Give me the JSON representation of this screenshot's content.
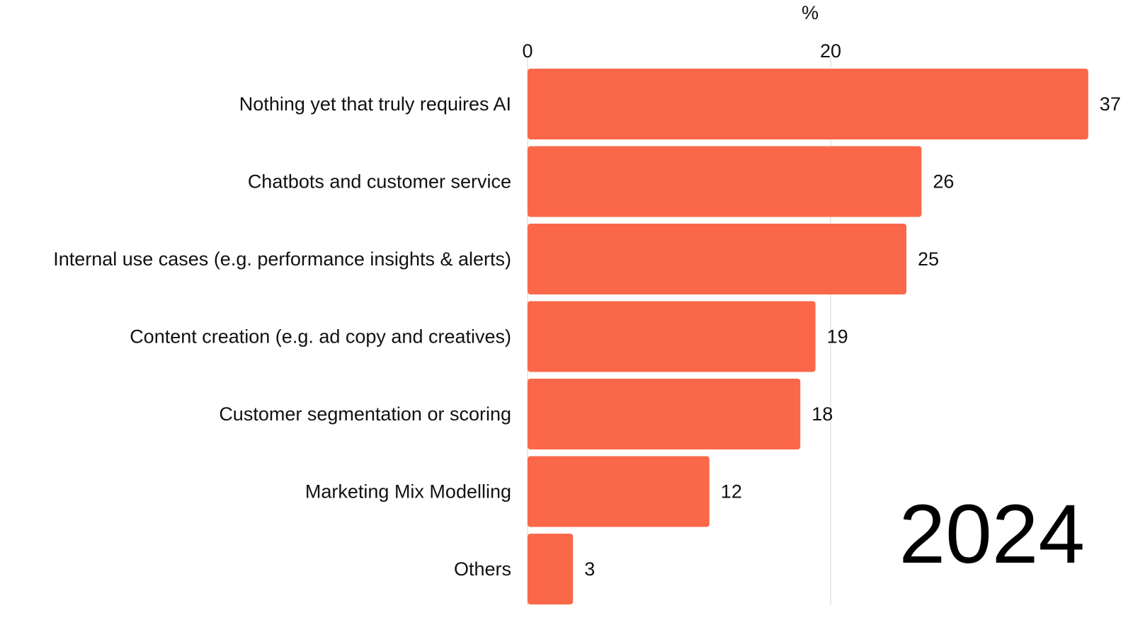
{
  "chart_data": {
    "type": "bar",
    "orientation": "horizontal",
    "unit_label": "%",
    "year": "2024",
    "categories": [
      "Nothing yet that truly requires AI",
      "Chatbots and customer service",
      "Internal use cases (e.g. performance insights & alerts)",
      "Content creation (e.g. ad copy and creatives)",
      "Customer segmentation or scoring",
      "Marketing Mix Modelling",
      "Others"
    ],
    "values": [
      37,
      26,
      25,
      19,
      18,
      12,
      3
    ],
    "value_labels": [
      "37",
      "26",
      "25",
      "19",
      "18",
      "12",
      "3"
    ],
    "x_ticks": [
      0,
      20
    ],
    "x_tick_labels": [
      "0",
      "20"
    ],
    "xlim": [
      0,
      37
    ],
    "xaxis_position": "top",
    "grid": "vertical gridline at each tick",
    "bar_color": "#FA6849",
    "grid_color": "#e4e4e4"
  }
}
